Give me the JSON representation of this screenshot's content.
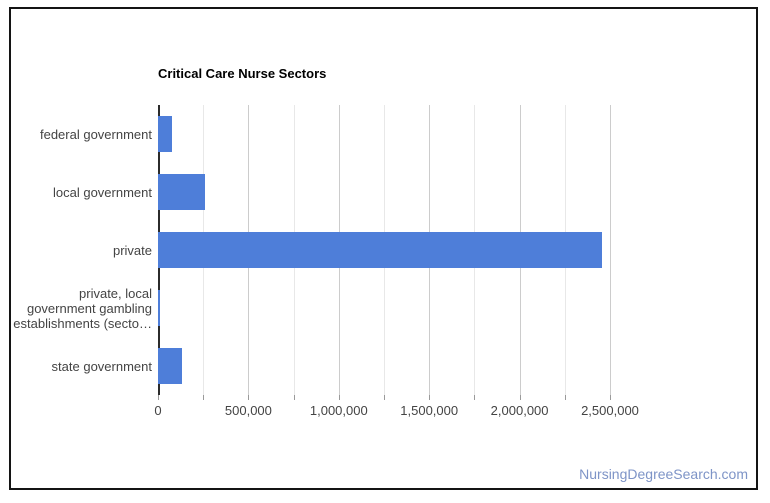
{
  "chart": {
    "title": "Critical Care Nurse Sectors"
  },
  "watermark": {
    "text": "NursingDegreeSearch.com"
  },
  "chart_data": {
    "type": "bar",
    "orientation": "horizontal",
    "title": "Critical Care Nurse Sectors",
    "categories": [
      "federal government",
      "local government",
      "private",
      "private, local government gambling establishments (secto…",
      "state government"
    ],
    "category_display_lines": [
      [
        "federal government"
      ],
      [
        "local government"
      ],
      [
        "private"
      ],
      [
        "private, local",
        "government gambling",
        "establishments (secto…"
      ],
      [
        "state government"
      ]
    ],
    "values": [
      80000,
      260000,
      2455000,
      2000,
      130000
    ],
    "xlim": [
      0,
      2500000
    ],
    "x_tick_labels": [
      "0",
      "500,000",
      "1,000,000",
      "1,500,000",
      "2,000,000",
      "2,500,000"
    ],
    "x_tick_values": [
      0,
      500000,
      1000000,
      1500000,
      2000000,
      2500000
    ],
    "minor_gridline_step": 250000,
    "grid": true,
    "legend_position": "none",
    "colors": {
      "bar": "#4e7ed9",
      "gridline_major": "#cccccc",
      "gridline_minor": "#e8e8e8",
      "baseline": "#2b2b2b",
      "axis_text": "#444444",
      "title_text": "#000000",
      "watermark": "#7e94c7",
      "card_border": "#141414"
    }
  }
}
